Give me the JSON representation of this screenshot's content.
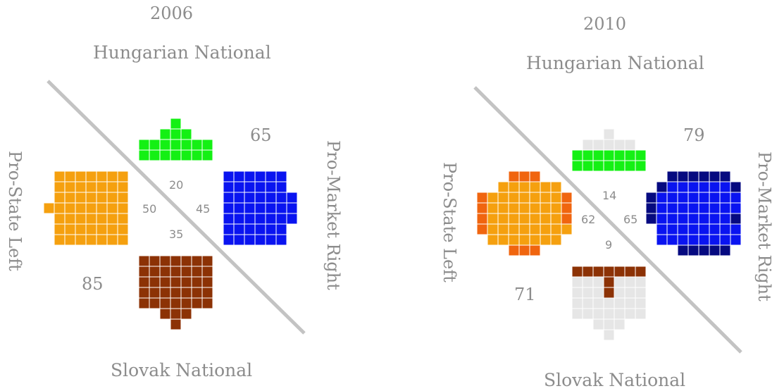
{
  "colors": {
    "left": "#f5a00f",
    "left_dark": "#f0650f",
    "right": "#0a14f0",
    "right_dark": "#060a80",
    "hungarian": "#14f014",
    "slovak": "#8c3205",
    "empty": "#e6e6e6",
    "divider": "#c3c3c3",
    "text": "#8c8c8c"
  },
  "panels": [
    {
      "year": "2006",
      "top_label": "Hungarian National",
      "bottom_label": "Slovak National",
      "left_label": "Pro-State Left",
      "right_label": "Pro-Market Right",
      "total_right": "65",
      "total_left": "85",
      "counts": {
        "hungarian": "20",
        "left": "50",
        "right": "45",
        "slovak": "35"
      }
    },
    {
      "year": "2010",
      "top_label": "Hungarian National",
      "bottom_label": "Slovak National",
      "left_label": "Pro-State Left",
      "right_label": "Pro-Market Right",
      "total_right": "79",
      "total_left": "71",
      "counts": {
        "hungarian": "14",
        "left": "62",
        "right": "65",
        "slovak": "9"
      }
    }
  ]
}
